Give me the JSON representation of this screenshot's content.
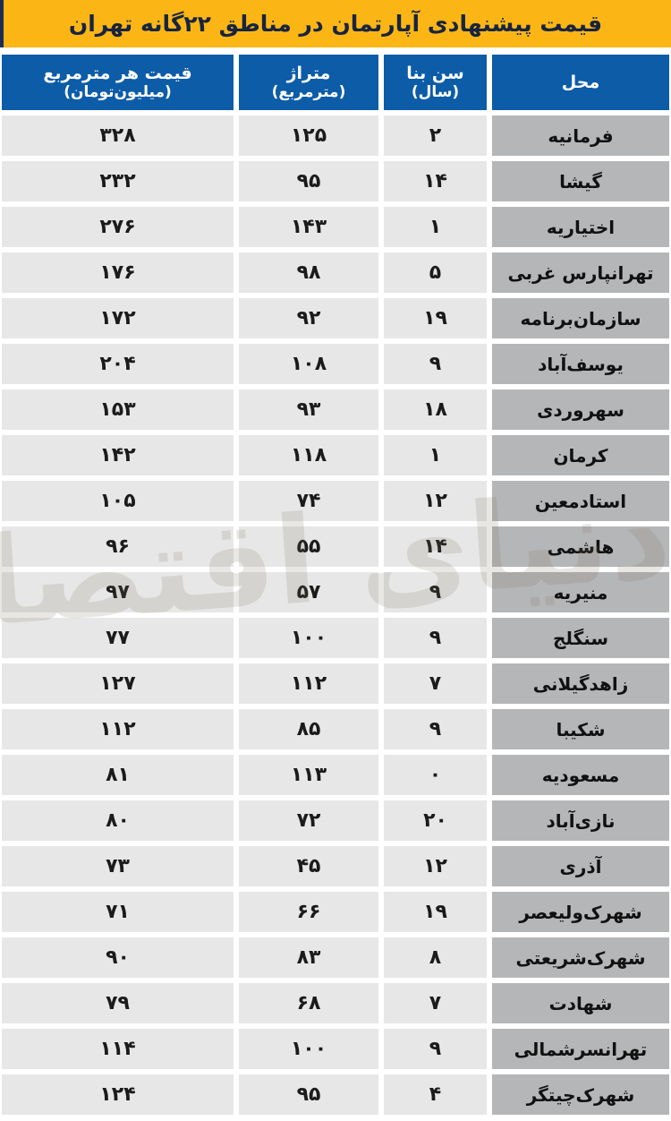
{
  "title": "قیمت پیشنهادی آپارتمان در مناطق ۲۲گانه تهران",
  "watermark": "دنیای اقتصاد",
  "colors": {
    "banner_bg": "#FBB616",
    "banner_text": "#18243F",
    "header_bg": "#0D5CA8",
    "header_text": "#FFFFFF",
    "value_cell_bg": "#E7E7E7",
    "place_cell_bg": "#B5B6B8",
    "cell_text": "#1B1B1B",
    "edge_strip": "#1D2C55",
    "background": "#FFFFFF"
  },
  "table": {
    "columns": [
      {
        "id": "place",
        "label": "محل",
        "sub": ""
      },
      {
        "id": "age",
        "label": "سن بنا",
        "sub": "(سال)"
      },
      {
        "id": "area",
        "label": "متراژ",
        "sub": "(مترمربع)"
      },
      {
        "id": "price",
        "label": "قیمت هر مترمربع",
        "sub": "(میلیون‌تومان)"
      }
    ],
    "rows": [
      {
        "place": "فرمانیه",
        "age": "۲",
        "area": "۱۲۵",
        "price": "۳۲۸"
      },
      {
        "place": "گیشا",
        "age": "۱۴",
        "area": "۹۵",
        "price": "۲۳۲"
      },
      {
        "place": "اختیاریه",
        "age": "۱",
        "area": "۱۴۳",
        "price": "۲۷۶"
      },
      {
        "place": "تهرانپارس غربی",
        "age": "۵",
        "area": "۹۸",
        "price": "۱۷۶"
      },
      {
        "place": "سازمان‌برنامه",
        "age": "۱۹",
        "area": "۹۲",
        "price": "۱۷۲"
      },
      {
        "place": "یوسف‌آباد",
        "age": "۹",
        "area": "۱۰۸",
        "price": "۲۰۴"
      },
      {
        "place": "سهروردی",
        "age": "۱۸",
        "area": "۹۳",
        "price": "۱۵۳"
      },
      {
        "place": "کرمان",
        "age": "۱",
        "area": "۱۱۸",
        "price": "۱۴۲"
      },
      {
        "place": "استادمعین",
        "age": "۱۲",
        "area": "۷۴",
        "price": "۱۰۵"
      },
      {
        "place": "هاشمی",
        "age": "۱۴",
        "area": "۵۵",
        "price": "۹۶"
      },
      {
        "place": "منیریه",
        "age": "۹",
        "area": "۵۷",
        "price": "۹۷"
      },
      {
        "place": "سنگلج",
        "age": "۹",
        "area": "۱۰۰",
        "price": "۷۷"
      },
      {
        "place": "زاهدگیلانی",
        "age": "۷",
        "area": "۱۱۲",
        "price": "۱۲۷"
      },
      {
        "place": "شکیبا",
        "age": "۹",
        "area": "۸۵",
        "price": "۱۱۲"
      },
      {
        "place": "مسعودیه",
        "age": "۰",
        "area": "۱۱۳",
        "price": "۸۱"
      },
      {
        "place": "نازی‌آباد",
        "age": "۲۰",
        "area": "۷۲",
        "price": "۸۰"
      },
      {
        "place": "آذری",
        "age": "۱۲",
        "area": "۴۵",
        "price": "۷۳"
      },
      {
        "place": "شهرک‌ولیعصر",
        "age": "۱۹",
        "area": "۶۶",
        "price": "۷۱"
      },
      {
        "place": "شهرک‌شریعتی",
        "age": "۸",
        "area": "۸۳",
        "price": "۹۰"
      },
      {
        "place": "شهادت",
        "age": "۷",
        "area": "۶۸",
        "price": "۷۹"
      },
      {
        "place": "تهرانسرشمالی",
        "age": "۹",
        "area": "۱۰۰",
        "price": "۱۱۴"
      },
      {
        "place": "شهرک‌چیتگر",
        "age": "۴",
        "area": "۹۵",
        "price": "۱۲۴"
      }
    ]
  },
  "chart_data": {
    "type": "table",
    "title": "قیمت پیشنهادی آپارتمان در مناطق ۲۲گانه تهران",
    "columns": [
      "محل",
      "سن بنا (سال)",
      "متراژ (مترمربع)",
      "قیمت هر مترمربع (میلیون تومان)"
    ],
    "rows": [
      [
        "فرمانیه",
        2,
        125,
        328
      ],
      [
        "گیشا",
        14,
        95,
        232
      ],
      [
        "اختیاریه",
        1,
        143,
        276
      ],
      [
        "تهرانپارس غربی",
        5,
        98,
        176
      ],
      [
        "سازمان برنامه",
        19,
        92,
        172
      ],
      [
        "یوسف‌آباد",
        9,
        108,
        204
      ],
      [
        "سهروردی",
        18,
        93,
        153
      ],
      [
        "کرمان",
        1,
        118,
        142
      ],
      [
        "استاد معین",
        12,
        74,
        105
      ],
      [
        "هاشمی",
        14,
        55,
        96
      ],
      [
        "منیریه",
        9,
        57,
        97
      ],
      [
        "سنگلج",
        9,
        100,
        77
      ],
      [
        "زاهد گیلانی",
        7,
        112,
        127
      ],
      [
        "شکیبا",
        9,
        85,
        112
      ],
      [
        "مسعودیه",
        0,
        113,
        81
      ],
      [
        "نازی‌آباد",
        20,
        72,
        80
      ],
      [
        "آذری",
        12,
        45,
        73
      ],
      [
        "شهرک ولیعصر",
        19,
        66,
        71
      ],
      [
        "شهرک شریعتی",
        8,
        83,
        90
      ],
      [
        "شهادت",
        7,
        68,
        79
      ],
      [
        "تهرانسر شمالی",
        9,
        100,
        114
      ],
      [
        "شهرک چیتگر",
        4,
        95,
        124
      ]
    ]
  }
}
